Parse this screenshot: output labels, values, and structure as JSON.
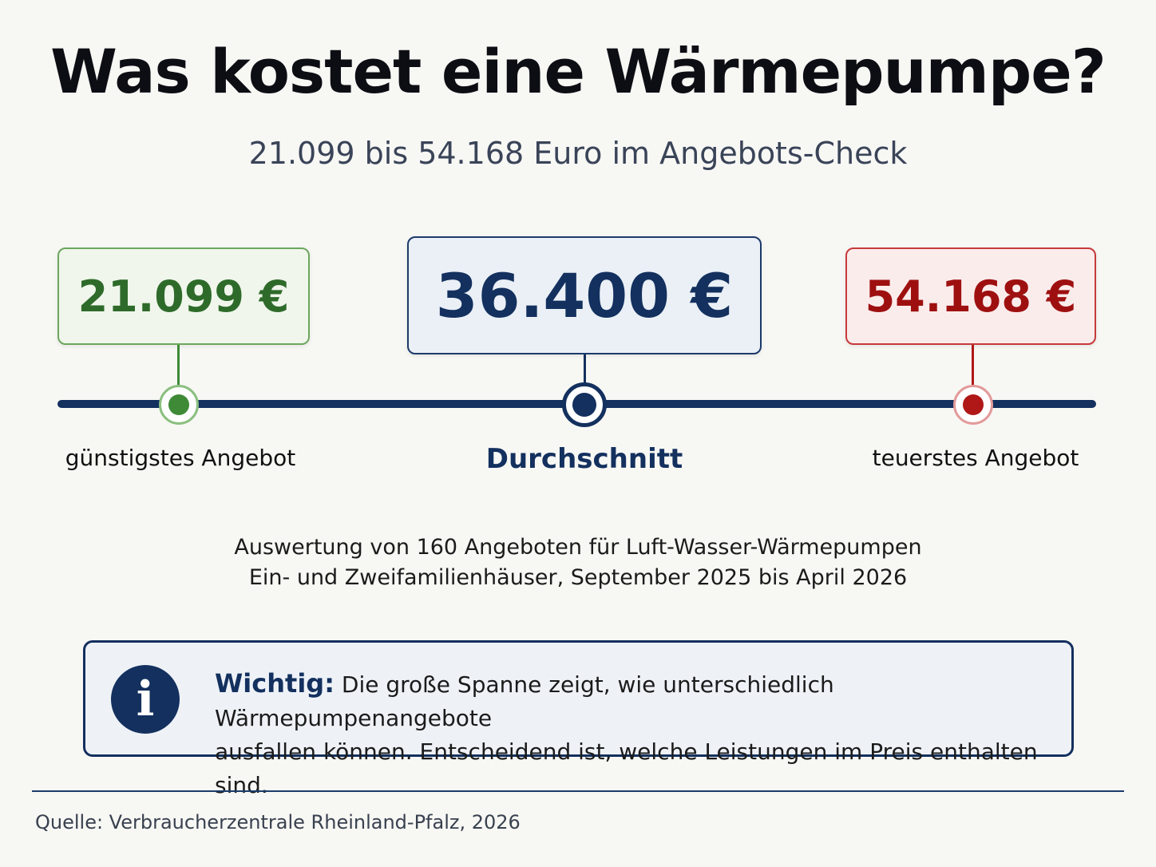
{
  "header": {
    "title": "Was kostet eine Wärmepumpe?",
    "subtitle": "21.099 bis 54.168 Euro im Angebots-Check"
  },
  "price_scale": {
    "min": {
      "value": 21099,
      "display": "21.099 €",
      "label": "günstigstes Angebot",
      "color": "#2e6b2a"
    },
    "average": {
      "value": 36400,
      "display": "36.400 €",
      "label": "Durchschnitt",
      "color": "#13305e"
    },
    "max": {
      "value": 54168,
      "display": "54.168 €",
      "label": "teuerstes Angebot",
      "color": "#9e1010"
    }
  },
  "notes": {
    "line1": "Auswertung von 160 Angeboten für Luft-Wasser-Wärmepumpen",
    "line2": "Ein- und Zweifamilienhäuser, September 2025 bis April 2026"
  },
  "info": {
    "icon": "info-icon",
    "icon_glyph": "i",
    "lead": "Wichtig:",
    "text_line1": "Die große Spanne zeigt, wie unterschiedlich Wärmepumpenangebote",
    "text_line2": "ausfallen können. Entscheidend ist, welche Leistungen im Preis enthalten sind."
  },
  "footer": {
    "source": "Quelle: Verbraucherzentrale Rheinland-Pfalz, 2026"
  }
}
